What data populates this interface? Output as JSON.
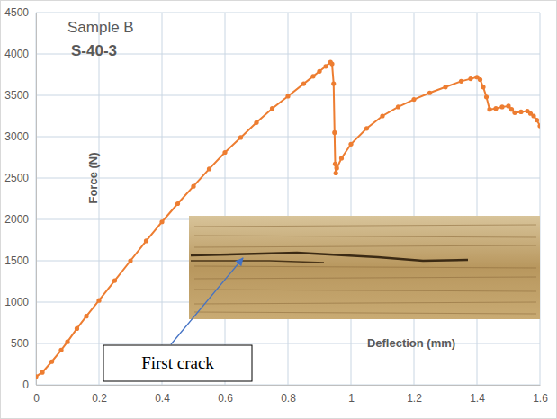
{
  "chart_data": {
    "type": "line",
    "title": "Sample B",
    "subtitle": "S-40-3",
    "x_label": "Deflection (mm)",
    "y_label": "Force (N)",
    "annotations": [
      "First crack"
    ],
    "color": "#ed7d31",
    "marker": "circle",
    "line_style": "solid",
    "grid": true,
    "x": [
      0,
      0.02,
      0.05,
      0.08,
      0.1,
      0.13,
      0.16,
      0.2,
      0.25,
      0.3,
      0.35,
      0.4,
      0.45,
      0.5,
      0.55,
      0.6,
      0.65,
      0.7,
      0.75,
      0.8,
      0.85,
      0.88,
      0.9,
      0.92,
      0.935,
      0.94,
      0.945,
      0.948,
      0.95,
      0.952,
      0.955,
      0.97,
      1.0,
      1.05,
      1.1,
      1.15,
      1.2,
      1.25,
      1.3,
      1.35,
      1.38,
      1.4,
      1.41,
      1.42,
      1.43,
      1.44,
      1.46,
      1.48,
      1.5,
      1.51,
      1.52,
      1.54,
      1.56,
      1.57,
      1.58,
      1.59,
      1.6
    ],
    "values": [
      100,
      150,
      280,
      420,
      520,
      680,
      830,
      1020,
      1260,
      1500,
      1740,
      1970,
      2190,
      2400,
      2610,
      2810,
      2990,
      3170,
      3340,
      3490,
      3640,
      3730,
      3790,
      3850,
      3900,
      3880,
      3640,
      3050,
      2670,
      2560,
      2620,
      2740,
      2910,
      3100,
      3250,
      3360,
      3450,
      3530,
      3600,
      3670,
      3700,
      3720,
      3690,
      3600,
      3480,
      3330,
      3340,
      3360,
      3370,
      3330,
      3290,
      3300,
      3310,
      3280,
      3250,
      3200,
      3130
    ],
    "xlim": [
      0,
      1.6
    ],
    "xticks": [
      0,
      0.2,
      0.4,
      0.6,
      0.8,
      1,
      1.2,
      1.4,
      1.6
    ],
    "ylim": [
      0,
      4500
    ],
    "yticks": [
      0,
      500,
      1000,
      1500,
      2000,
      2500,
      3000,
      3500,
      4000,
      4500
    ]
  }
}
